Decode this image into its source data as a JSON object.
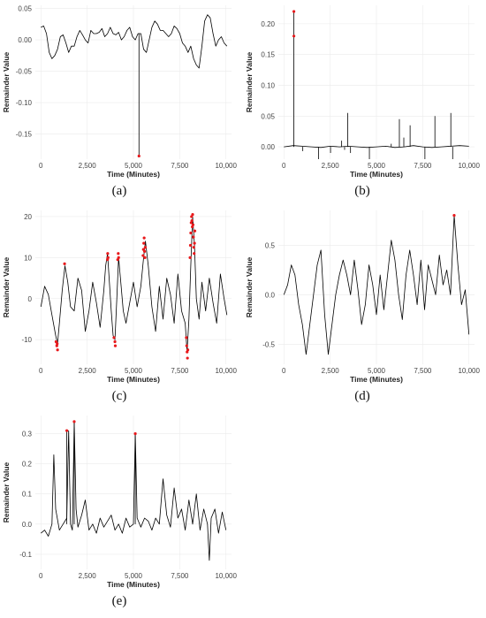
{
  "panels": [
    {
      "id": "a",
      "caption": "(a)",
      "xlabel": "Time (Minutes)",
      "ylabel": "Remainder Value",
      "xticks": [
        {
          "v": 0,
          "label": "0"
        },
        {
          "v": 2500,
          "label": "2,500"
        },
        {
          "v": 5000,
          "label": "5,000"
        },
        {
          "v": 7500,
          "label": "7,500"
        },
        {
          "v": 10000,
          "label": "10,000"
        }
      ],
      "yticks": [
        {
          "v": 0.05,
          "label": "0.05"
        },
        {
          "v": 0,
          "label": "0.00"
        },
        {
          "v": -0.05,
          "label": "-0.05"
        },
        {
          "v": -0.1,
          "label": "-0.10"
        },
        {
          "v": -0.15,
          "label": "-0.15"
        }
      ]
    },
    {
      "id": "b",
      "caption": "(b)",
      "xlabel": "Time (Minutes)",
      "ylabel": "Remainder Value",
      "xticks": [
        {
          "v": 0,
          "label": "0"
        },
        {
          "v": 2500,
          "label": "2,500"
        },
        {
          "v": 5000,
          "label": "5,000"
        },
        {
          "v": 7500,
          "label": "7,500"
        },
        {
          "v": 10000,
          "label": "10,000"
        }
      ],
      "yticks": [
        {
          "v": 0.2,
          "label": "0.20"
        },
        {
          "v": 0.15,
          "label": "0.15"
        },
        {
          "v": 0.1,
          "label": "0.10"
        },
        {
          "v": 0.05,
          "label": "0.05"
        },
        {
          "v": 0,
          "label": "0.00"
        }
      ]
    },
    {
      "id": "c",
      "caption": "(c)",
      "xlabel": "Time (Minutes)",
      "ylabel": "Remainder Value",
      "xticks": [
        {
          "v": 0,
          "label": "0"
        },
        {
          "v": 2500,
          "label": "2,500"
        },
        {
          "v": 5000,
          "label": "5,000"
        },
        {
          "v": 7500,
          "label": "7,500"
        },
        {
          "v": 10000,
          "label": "10,000"
        }
      ],
      "yticks": [
        {
          "v": 20,
          "label": "20"
        },
        {
          "v": 10,
          "label": "10"
        },
        {
          "v": 0,
          "label": "0"
        },
        {
          "v": -10,
          "label": "-10"
        }
      ]
    },
    {
      "id": "d",
      "caption": "(d)",
      "xlabel": "Time (Minutes)",
      "ylabel": "Remainder Value",
      "xticks": [
        {
          "v": 0,
          "label": "0"
        },
        {
          "v": 2500,
          "label": "2,500"
        },
        {
          "v": 5000,
          "label": "5,000"
        },
        {
          "v": 7500,
          "label": "7,500"
        },
        {
          "v": 10000,
          "label": "10,000"
        }
      ],
      "yticks": [
        {
          "v": 0.5,
          "label": "0.5"
        },
        {
          "v": 0,
          "label": "0.0"
        },
        {
          "v": -0.5,
          "label": "-0.5"
        }
      ]
    },
    {
      "id": "e",
      "caption": "(e)",
      "xlabel": "Time (Minutes)",
      "ylabel": "Remainder Value",
      "xticks": [
        {
          "v": 0,
          "label": "0"
        },
        {
          "v": 2500,
          "label": "2,500"
        },
        {
          "v": 5000,
          "label": "5,000"
        },
        {
          "v": 7500,
          "label": "7,500"
        },
        {
          "v": 10000,
          "label": "10,000"
        }
      ],
      "yticks": [
        {
          "v": 0.3,
          "label": "0.3"
        },
        {
          "v": 0.2,
          "label": "0.2"
        },
        {
          "v": 0.1,
          "label": "0.1"
        },
        {
          "v": 0,
          "label": "0.0"
        },
        {
          "v": -0.1,
          "label": "-0.1"
        }
      ]
    }
  ],
  "chart_data": [
    {
      "type": "line",
      "panel": "a",
      "xlabel": "Time (Minutes)",
      "ylabel": "Remainder Value",
      "xlim": [
        -300,
        10300
      ],
      "ylim": [
        -0.19,
        0.055
      ],
      "x": [
        0,
        150,
        300,
        450,
        600,
        750,
        900,
        1050,
        1200,
        1350,
        1500,
        1650,
        1800,
        1950,
        2100,
        2250,
        2400,
        2550,
        2700,
        2850,
        3000,
        3150,
        3300,
        3450,
        3600,
        3750,
        3900,
        4050,
        4200,
        4350,
        4500,
        4650,
        4800,
        4950,
        5100,
        5250,
        5400,
        5550,
        5700,
        5850,
        6000,
        6150,
        6300,
        6450,
        6600,
        6750,
        6900,
        7050,
        7200,
        7350,
        7500,
        7650,
        7800,
        7950,
        8100,
        8250,
        8400,
        8550,
        8700,
        8850,
        9000,
        9150,
        9300,
        9450,
        9600,
        9750,
        9900,
        10050
      ],
      "y": [
        0.02,
        0.022,
        0.01,
        -0.02,
        -0.03,
        -0.025,
        -0.015,
        0.005,
        0.008,
        -0.005,
        -0.02,
        -0.01,
        -0.01,
        0.005,
        0.015,
        0.008,
        0.0,
        -0.005,
        0.015,
        0.01,
        0.01,
        0.012,
        0.018,
        0.005,
        0.01,
        0.02,
        0.01,
        0.008,
        0.012,
        0.0,
        0.005,
        0.015,
        0.02,
        0.005,
        0.0,
        0.01,
        0.01,
        -0.015,
        -0.02,
        0.0,
        0.02,
        0.03,
        0.025,
        0.015,
        0.015,
        0.01,
        0.005,
        0.01,
        0.022,
        0.018,
        0.01,
        -0.005,
        -0.01,
        -0.02,
        -0.01,
        -0.03,
        -0.04,
        -0.045,
        -0.01,
        0.03,
        0.04,
        0.035,
        0.01,
        -0.01,
        0.0,
        0.005,
        -0.005,
        -0.01
      ],
      "anomalies": [
        {
          "x": 5300,
          "y": -0.185
        }
      ]
    },
    {
      "type": "line",
      "panel": "b",
      "xlabel": "Time (Minutes)",
      "ylabel": "Remainder Value",
      "xlim": [
        -300,
        10300
      ],
      "ylim": [
        -0.02,
        0.23
      ],
      "x": [
        0,
        500,
        1000,
        1500,
        2000,
        2500,
        3000,
        3500,
        4000,
        4500,
        5000,
        5500,
        6000,
        6500,
        7000,
        7500,
        8000,
        8500,
        9000,
        9500,
        10000
      ],
      "y": [
        0.0,
        0.002,
        0.001,
        0.0,
        -0.001,
        0.001,
        0.0,
        0.001,
        0.0,
        -0.001,
        0.0,
        0.001,
        -0.001,
        0.0,
        0.002,
        0.0,
        -0.001,
        0.0,
        0.001,
        0.002,
        0.001
      ],
      "spikes": [
        {
          "x": 540,
          "y": 0.22
        },
        {
          "x": 1020,
          "y": -0.007
        },
        {
          "x": 1870,
          "y": -0.02
        },
        {
          "x": 2520,
          "y": -0.01
        },
        {
          "x": 3120,
          "y": 0.01
        },
        {
          "x": 3280,
          "y": -0.005
        },
        {
          "x": 3450,
          "y": 0.055
        },
        {
          "x": 3600,
          "y": -0.01
        },
        {
          "x": 4620,
          "y": -0.02
        },
        {
          "x": 5800,
          "y": 0.005
        },
        {
          "x": 6240,
          "y": 0.045
        },
        {
          "x": 6480,
          "y": 0.015
        },
        {
          "x": 6820,
          "y": 0.035
        },
        {
          "x": 7620,
          "y": -0.02
        },
        {
          "x": 8160,
          "y": 0.05
        },
        {
          "x": 9020,
          "y": 0.055
        },
        {
          "x": 9120,
          "y": -0.02
        }
      ],
      "anomalies": [
        {
          "x": 540,
          "y": 0.22
        },
        {
          "x": 540,
          "y": 0.18
        }
      ]
    },
    {
      "type": "line",
      "panel": "c",
      "xlabel": "Time (Minutes)",
      "ylabel": "Remainder Value",
      "xlim": [
        -300,
        10300
      ],
      "ylim": [
        -16,
        21.5
      ],
      "x": [
        0,
        200,
        400,
        600,
        800,
        900,
        1000,
        1150,
        1300,
        1450,
        1600,
        1800,
        2000,
        2200,
        2400,
        2600,
        2800,
        3000,
        3200,
        3400,
        3500,
        3600,
        3700,
        3800,
        3900,
        4000,
        4100,
        4200,
        4300,
        4450,
        4600,
        4800,
        5000,
        5200,
        5400,
        5550,
        5650,
        5800,
        6000,
        6200,
        6400,
        6600,
        6800,
        7000,
        7200,
        7400,
        7600,
        7800,
        7900,
        8000,
        8100,
        8200,
        8300,
        8400,
        8550,
        8700,
        8900,
        9100,
        9300,
        9500,
        9700,
        9900,
        10050
      ],
      "y": [
        -2,
        3,
        1,
        -4,
        -9,
        -11,
        -6,
        2,
        8,
        4,
        -2,
        -3,
        5,
        2,
        -8,
        -3,
        4,
        -1,
        -7,
        2,
        8,
        11,
        4,
        -3,
        -9,
        -10,
        0,
        10,
        5,
        -3,
        -6,
        -1,
        4,
        -2,
        3,
        10,
        14,
        8,
        -2,
        -8,
        3,
        -5,
        5,
        1,
        -6,
        6,
        -3,
        -6,
        -13,
        -5,
        8,
        20,
        13,
        0,
        -5,
        4,
        -3,
        5,
        -1,
        -6,
        6,
        0,
        -4
      ],
      "anomalies": [
        {
          "x": 820,
          "y": -10.5
        },
        {
          "x": 860,
          "y": -11.5
        },
        {
          "x": 900,
          "y": -12.5
        },
        {
          "x": 880,
          "y": -11
        },
        {
          "x": 1280,
          "y": 8.5
        },
        {
          "x": 3600,
          "y": 9.5
        },
        {
          "x": 3610,
          "y": 11
        },
        {
          "x": 3630,
          "y": 10
        },
        {
          "x": 3950,
          "y": -9.5
        },
        {
          "x": 4000,
          "y": -10.5
        },
        {
          "x": 4020,
          "y": -11.5
        },
        {
          "x": 4150,
          "y": 9.5
        },
        {
          "x": 4180,
          "y": 11
        },
        {
          "x": 4200,
          "y": 10
        },
        {
          "x": 5520,
          "y": 10.5
        },
        {
          "x": 5540,
          "y": 12
        },
        {
          "x": 5560,
          "y": 13.5
        },
        {
          "x": 5580,
          "y": 14.8
        },
        {
          "x": 5600,
          "y": 11.5
        },
        {
          "x": 5620,
          "y": 10
        },
        {
          "x": 5640,
          "y": 12.5
        },
        {
          "x": 7860,
          "y": -9.5
        },
        {
          "x": 7880,
          "y": -11.5
        },
        {
          "x": 7900,
          "y": -13
        },
        {
          "x": 7920,
          "y": -14.5
        },
        {
          "x": 7940,
          "y": -12.5
        },
        {
          "x": 8060,
          "y": 10
        },
        {
          "x": 8080,
          "y": 13
        },
        {
          "x": 8100,
          "y": 16
        },
        {
          "x": 8120,
          "y": 18.5
        },
        {
          "x": 8140,
          "y": 20
        },
        {
          "x": 8160,
          "y": 19
        },
        {
          "x": 8180,
          "y": 17.5
        },
        {
          "x": 8200,
          "y": 20.5
        },
        {
          "x": 8220,
          "y": 18
        },
        {
          "x": 8240,
          "y": 15
        },
        {
          "x": 8260,
          "y": 12.5
        },
        {
          "x": 8280,
          "y": 11
        },
        {
          "x": 8300,
          "y": 13.5
        },
        {
          "x": 8320,
          "y": 16.5
        }
      ]
    },
    {
      "type": "line",
      "panel": "d",
      "xlabel": "Time (Minutes)",
      "ylabel": "Remainder Value",
      "xlim": [
        -300,
        10300
      ],
      "ylim": [
        -0.7,
        0.85
      ],
      "x": [
        0,
        200,
        400,
        600,
        800,
        1000,
        1200,
        1400,
        1600,
        1800,
        2000,
        2200,
        2400,
        2600,
        2800,
        3000,
        3200,
        3400,
        3600,
        3800,
        4000,
        4200,
        4400,
        4600,
        4800,
        5000,
        5200,
        5400,
        5600,
        5800,
        6000,
        6200,
        6400,
        6600,
        6800,
        7000,
        7200,
        7400,
        7600,
        7800,
        8000,
        8200,
        8400,
        8600,
        8800,
        9000,
        9200,
        9400,
        9600,
        9800,
        10000
      ],
      "y": [
        0.0,
        0.1,
        0.3,
        0.2,
        -0.1,
        -0.3,
        -0.6,
        -0.3,
        0.0,
        0.3,
        0.45,
        -0.2,
        -0.6,
        -0.3,
        0.0,
        0.2,
        0.35,
        0.2,
        0.0,
        0.35,
        0.05,
        -0.3,
        -0.1,
        0.3,
        0.1,
        -0.2,
        0.2,
        -0.15,
        0.2,
        0.55,
        0.35,
        0.0,
        -0.25,
        0.2,
        0.45,
        0.2,
        -0.1,
        0.35,
        -0.15,
        0.3,
        0.15,
        0.0,
        0.4,
        0.1,
        0.25,
        0.0,
        0.8,
        0.3,
        -0.1,
        0.05,
        -0.4
      ],
      "anomalies": [
        {
          "x": 9200,
          "y": 0.8
        }
      ]
    },
    {
      "type": "line",
      "panel": "e",
      "xlabel": "Time (Minutes)",
      "ylabel": "Remainder Value",
      "xlim": [
        -300,
        10300
      ],
      "ylim": [
        -0.15,
        0.36
      ],
      "x": [
        0,
        200,
        400,
        600,
        700,
        800,
        1000,
        1200,
        1400,
        1500,
        1600,
        1700,
        1800,
        1900,
        2000,
        2200,
        2400,
        2600,
        2800,
        3000,
        3200,
        3400,
        3600,
        3800,
        4000,
        4200,
        4400,
        4600,
        4800,
        5000,
        5100,
        5200,
        5400,
        5600,
        5800,
        6000,
        6200,
        6400,
        6600,
        6800,
        7000,
        7200,
        7400,
        7600,
        7800,
        8000,
        8200,
        8400,
        8600,
        8800,
        9000,
        9100,
        9200,
        9400,
        9600,
        9800,
        10000
      ],
      "y": [
        -0.03,
        -0.02,
        -0.04,
        0.0,
        0.23,
        0.05,
        -0.02,
        0.0,
        0.02,
        0.31,
        0.0,
        -0.02,
        0.34,
        0.05,
        -0.01,
        0.03,
        0.08,
        -0.02,
        0.0,
        -0.03,
        0.02,
        -0.01,
        0.01,
        0.03,
        -0.02,
        0.0,
        -0.03,
        0.02,
        -0.01,
        0.0,
        0.3,
        0.02,
        -0.01,
        0.02,
        0.01,
        -0.02,
        0.02,
        0.0,
        0.15,
        0.03,
        -0.01,
        0.12,
        0.02,
        0.05,
        -0.02,
        0.08,
        0.0,
        0.1,
        -0.02,
        0.05,
        0.0,
        -0.12,
        0.02,
        0.05,
        -0.03,
        0.04,
        -0.02
      ],
      "anomalies": [
        {
          "x": 1400,
          "y": 0.31
        },
        {
          "x": 1800,
          "y": 0.34
        },
        {
          "x": 5100,
          "y": 0.3
        }
      ]
    }
  ]
}
